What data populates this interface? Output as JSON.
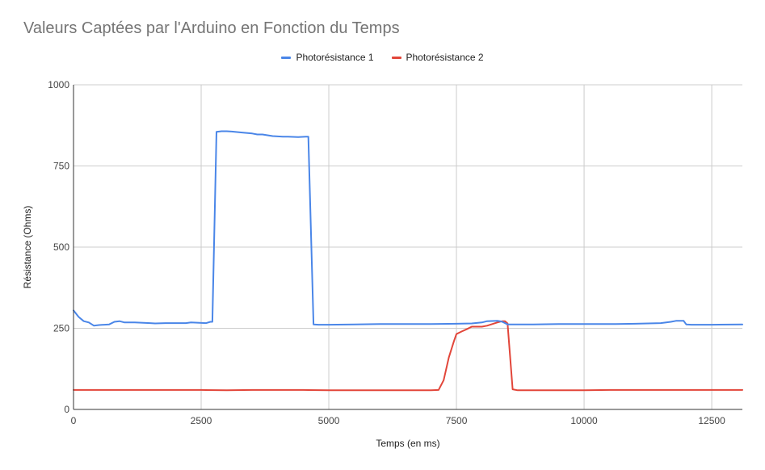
{
  "colors": {
    "series1": "#4a86e8",
    "series2": "#e2463a",
    "grid": "#cccccc",
    "axis": "#333333"
  },
  "chart_data": {
    "type": "line",
    "title": "Valeurs Captées par l'Arduino en Fonction du Temps",
    "xlabel": "Temps (en ms)",
    "ylabel": "Résistance (Ohms)",
    "xlim": [
      0,
      13100
    ],
    "ylim": [
      0,
      1000
    ],
    "xticks": [
      0,
      2500,
      5000,
      7500,
      10000,
      12500
    ],
    "yticks": [
      0,
      250,
      500,
      750,
      1000
    ],
    "grid": true,
    "legend": "top",
    "series": [
      {
        "name": "Photorésistance 1",
        "color": "#4a86e8",
        "x": [
          0,
          100,
          200,
          300,
          400,
          500,
          700,
          800,
          900,
          1000,
          1200,
          1500,
          1600,
          1800,
          2000,
          2200,
          2300,
          2600,
          2680,
          2720,
          2800,
          2900,
          3000,
          3100,
          3300,
          3500,
          3600,
          3700,
          3900,
          4100,
          4200,
          4400,
          4550,
          4600,
          4700,
          4800,
          5000,
          5500,
          6000,
          6500,
          7000,
          7500,
          7800,
          8000,
          8100,
          8300,
          8350,
          8400,
          8500,
          8800,
          9000,
          9500,
          10000,
          10300,
          10500,
          11000,
          11500,
          11700,
          11800,
          11950,
          12000,
          12100,
          12500,
          13100
        ],
        "y": [
          305,
          285,
          272,
          268,
          258,
          260,
          262,
          270,
          272,
          268,
          268,
          266,
          265,
          266,
          266,
          266,
          268,
          266,
          270,
          270,
          855,
          857,
          857,
          856,
          853,
          850,
          847,
          847,
          842,
          840,
          840,
          839,
          840,
          840,
          262,
          261,
          261,
          262,
          263,
          263,
          263,
          264,
          265,
          268,
          272,
          273,
          272,
          270,
          262,
          262,
          262,
          263,
          263,
          263,
          263,
          264,
          266,
          270,
          273,
          273,
          262,
          261,
          261,
          262
        ]
      },
      {
        "name": "Photorésistance 2",
        "color": "#e2463a",
        "x": [
          0,
          500,
          1000,
          1500,
          2000,
          2500,
          3000,
          3500,
          4000,
          4500,
          5000,
          5500,
          6000,
          6500,
          7000,
          7150,
          7250,
          7350,
          7450,
          7500,
          7600,
          7700,
          7800,
          8000,
          8100,
          8200,
          8300,
          8400,
          8450,
          8500,
          8600,
          8700,
          9000,
          9500,
          10000,
          10500,
          11000,
          11500,
          12000,
          12500,
          13100
        ],
        "y": [
          60,
          60,
          60,
          60,
          60,
          60,
          59,
          60,
          60,
          60,
          59,
          59,
          59,
          59,
          59,
          60,
          90,
          160,
          210,
          232,
          240,
          247,
          255,
          255,
          258,
          263,
          268,
          272,
          272,
          265,
          62,
          59,
          59,
          59,
          59,
          60,
          60,
          60,
          60,
          60,
          60
        ]
      }
    ]
  }
}
